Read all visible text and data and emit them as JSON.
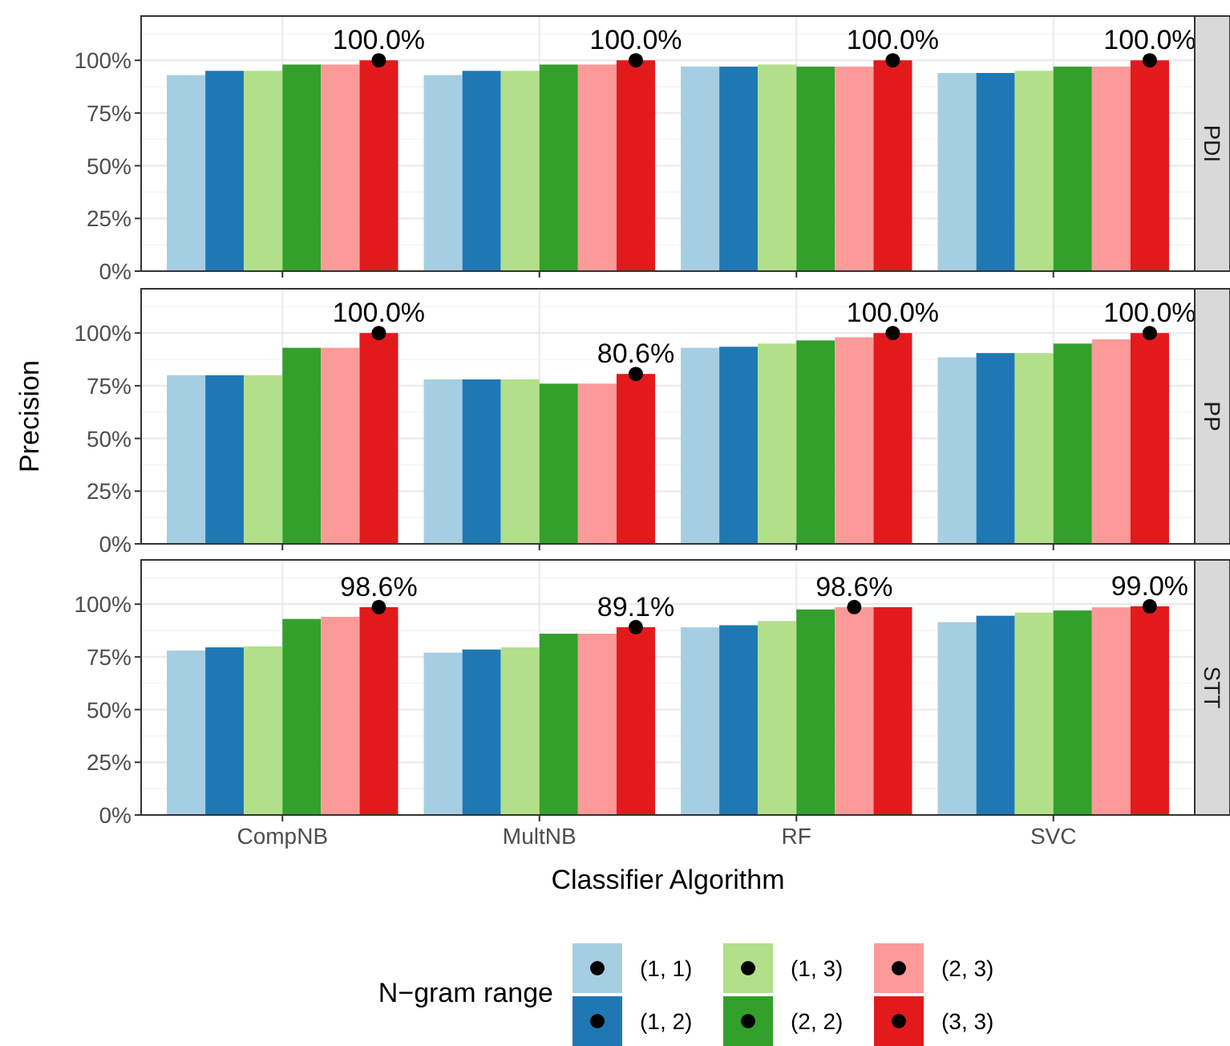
{
  "chart_data": [
    {
      "type": "bar",
      "title": "PDI",
      "legend": "bottom",
      "legend_title": "N−gram range",
      "categories": [
        "CompNB",
        "MultNB",
        "RF",
        "SVC"
      ],
      "ylim": [
        0,
        121
      ],
      "yticks": [
        {
          "value": 0,
          "label": "0%"
        },
        {
          "value": 25,
          "label": "25%"
        },
        {
          "value": 50,
          "label": "50%"
        },
        {
          "value": 75,
          "label": "75%"
        },
        {
          "value": 100,
          "label": "100%"
        }
      ],
      "grid": true,
      "tick_labels": "y",
      "series": [
        {
          "name": "(1, 1)",
          "color": "#a6cee3",
          "values": [
            93,
            93,
            97,
            94
          ]
        },
        {
          "name": "(1, 2)",
          "color": "#1f78b4",
          "values": [
            95,
            95,
            97,
            94
          ]
        },
        {
          "name": "(1, 3)",
          "color": "#b2df8a",
          "values": [
            95,
            95,
            98,
            95
          ]
        },
        {
          "name": "(2, 2)",
          "color": "#33a02c",
          "values": [
            98,
            98,
            97,
            97
          ]
        },
        {
          "name": "(2, 3)",
          "color": "#fb9a99",
          "values": [
            98,
            98,
            97,
            97
          ]
        },
        {
          "name": "(3, 3)",
          "color": "#e31a1c",
          "values": [
            100,
            100,
            100,
            100
          ]
        },
        {
          "type": "scatter",
          "color": "#000000",
          "x": [
            "CompNB",
            "MultNB",
            "RF",
            "SVC"
          ],
          "values": [
            100,
            100,
            100,
            100
          ],
          "value_labels": [
            "100.0%",
            "100.0%",
            "100.0%",
            "100.0%"
          ]
        }
      ]
    },
    {
      "type": "bar",
      "title": "PP",
      "ylabel": "Precision",
      "categories": [
        "CompNB",
        "MultNB",
        "RF",
        "SVC"
      ],
      "ylim": [
        0,
        121
      ],
      "yticks": [
        {
          "value": 0,
          "label": "0%"
        },
        {
          "value": 25,
          "label": "25%"
        },
        {
          "value": 50,
          "label": "50%"
        },
        {
          "value": 75,
          "label": "75%"
        },
        {
          "value": 100,
          "label": "100%"
        }
      ],
      "grid": true,
      "tick_labels": "y",
      "series": [
        {
          "color": "#a6cee3",
          "values": [
            80,
            78,
            93,
            88.5
          ]
        },
        {
          "color": "#1f78b4",
          "values": [
            80,
            78,
            93.5,
            90.5
          ]
        },
        {
          "color": "#b2df8a",
          "values": [
            80,
            78,
            95,
            90.5
          ]
        },
        {
          "color": "#33a02c",
          "values": [
            93,
            76,
            96.5,
            95
          ]
        },
        {
          "color": "#fb9a99",
          "values": [
            93,
            76,
            98,
            97
          ]
        },
        {
          "color": "#e31a1c",
          "values": [
            100,
            80.6,
            100,
            100
          ]
        },
        {
          "type": "scatter",
          "color": "#000000",
          "x": [
            "CompNB",
            "MultNB",
            "RF",
            "SVC"
          ],
          "values": [
            100,
            80.6,
            100,
            100
          ],
          "value_labels": [
            "100.0%",
            "80.6%",
            "100.0%",
            "100.0%"
          ]
        }
      ]
    },
    {
      "type": "bar",
      "title": "STT",
      "xlabel": "Classifier Algorithm",
      "categories": [
        "CompNB",
        "MultNB",
        "RF",
        "SVC"
      ],
      "ylim": [
        0,
        121
      ],
      "yticks": [
        {
          "value": 0,
          "label": "0%"
        },
        {
          "value": 25,
          "label": "25%"
        },
        {
          "value": 50,
          "label": "50%"
        },
        {
          "value": 75,
          "label": "75%"
        },
        {
          "value": 100,
          "label": "100%"
        }
      ],
      "grid": true,
      "series": [
        {
          "color": "#a6cee3",
          "values": [
            78,
            77,
            89,
            91.5
          ]
        },
        {
          "color": "#1f78b4",
          "values": [
            79.5,
            78.5,
            90,
            94.5
          ]
        },
        {
          "color": "#b2df8a",
          "values": [
            80,
            79.5,
            92,
            96
          ]
        },
        {
          "color": "#33a02c",
          "values": [
            93,
            86,
            97.5,
            97
          ]
        },
        {
          "color": "#fb9a99",
          "values": [
            94,
            86,
            98.6,
            98.5
          ]
        },
        {
          "color": "#e31a1c",
          "values": [
            98.6,
            89.1,
            98.6,
            99.0
          ]
        },
        {
          "type": "scatter",
          "color": "#000000",
          "x": [
            "CompNB",
            "MultNB",
            "RF",
            "SVC"
          ],
          "values": [
            98.6,
            89.1,
            98.6,
            99.0
          ],
          "value_labels": [
            "98.6%",
            "89.1%",
            "98.6%",
            "99.0%"
          ]
        }
      ]
    }
  ]
}
